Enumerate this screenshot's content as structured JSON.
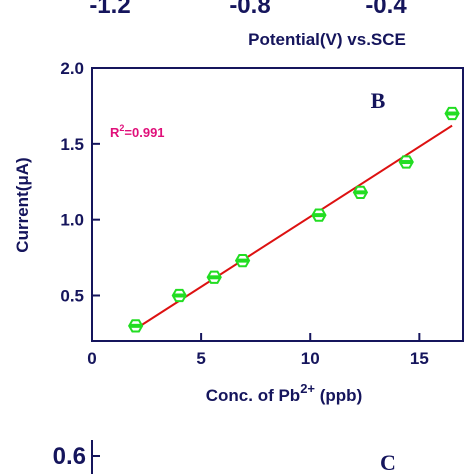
{
  "top_panel": {
    "x_tick_labels": [
      "-1.2",
      "-0.8",
      "-0.4"
    ],
    "xlabel": "Potential(V) vs.SCE"
  },
  "chart_data": {
    "type": "scatter",
    "panel_label": "B",
    "annotation": {
      "base": "R",
      "sup": "2",
      "rest": "=0.991"
    },
    "xlabel": {
      "base": "Conc. of Pb",
      "sup": "2+",
      "rest": " (ppb)"
    },
    "ylabel": "Current(μA)",
    "xlim": [
      0,
      17
    ],
    "ylim": [
      0.2,
      2.0
    ],
    "x_ticks": [
      "0",
      "5",
      "10",
      "15"
    ],
    "y_ticks": [
      "0.5",
      "1.0",
      "1.5",
      "2.0"
    ],
    "points": [
      {
        "x": 2.0,
        "y": 0.3
      },
      {
        "x": 4.0,
        "y": 0.5
      },
      {
        "x": 5.6,
        "y": 0.62
      },
      {
        "x": 6.9,
        "y": 0.73
      },
      {
        "x": 10.4,
        "y": 1.03
      },
      {
        "x": 12.3,
        "y": 1.18
      },
      {
        "x": 14.4,
        "y": 1.38
      },
      {
        "x": 16.5,
        "y": 1.7
      }
    ],
    "fit_line": {
      "x": [
        2.0,
        16.5
      ],
      "y": [
        0.28,
        1.62
      ]
    },
    "marker_color": "#22dd22",
    "line_color": "#dd1111",
    "axis_color": "#15155c",
    "grid": false
  },
  "bottom_panel": {
    "y_tick_label": "0.6",
    "panel_label": "C"
  }
}
